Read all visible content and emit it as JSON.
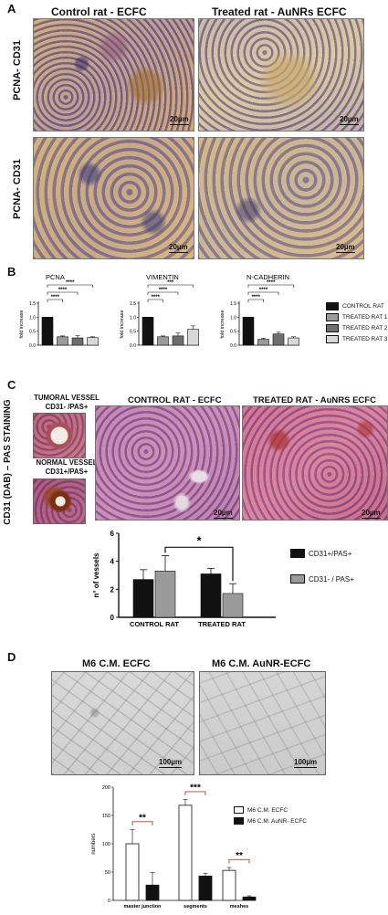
{
  "panel_a": {
    "label": "A",
    "col_titles": [
      "Control rat - ECFC",
      "Treated rat -  AuNRs ECFC"
    ],
    "row_labels": [
      "PCNA- CD31",
      "PCNA- CD31"
    ],
    "scale_bars": [
      "20µm",
      "20µm",
      "20µm",
      "20µm"
    ]
  },
  "panel_b": {
    "label": "B",
    "legend": [
      "CONTROL RAT",
      "TREATED RAT 1",
      "TREATED RAT 2",
      "TREATED RAT 3"
    ],
    "colors": [
      "#111111",
      "#9a9a9a",
      "#6e6e6e",
      "#d8d8d8"
    ]
  },
  "panel_c": {
    "label": "C",
    "side_title": "CD31 (DAB) – PAS  STAINING",
    "tumoral_vessel": [
      "TUMORAL VESSEL",
      "CD31- /PAS+"
    ],
    "normal_vessel": [
      "NORMAL VESSEL",
      "CD31+/PAS+"
    ],
    "col_titles": [
      "CONTROL RAT - ECFC",
      "TREATED RAT -  AuNRS ECFC"
    ],
    "scale_bars": [
      "20µm",
      "20µm"
    ],
    "legend": [
      "CD31+/PAS+",
      "CD31- / PAS+"
    ],
    "colors": [
      "#111111",
      "#9a9a9a"
    ]
  },
  "panel_d": {
    "label": "D",
    "col_titles": [
      "M6  C.M. ECFC",
      "M6  C.M. AuNR-ECFC"
    ],
    "scale_bars": [
      "100µm",
      "100µm"
    ],
    "legend": [
      "M6 C.M. ECFC",
      "M6 C.M. AuNR- ECFC"
    ],
    "colors": [
      "#ffffff",
      "#111111"
    ]
  },
  "chart_data": [
    {
      "type": "bar",
      "title": "PCNA",
      "ylabel": "fold increase",
      "ylim": [
        0,
        1.5
      ],
      "yticks": [
        "0.0",
        "0.5",
        "1.0",
        "1.5"
      ],
      "categories": [
        "CONTROL RAT",
        "TREATED RAT 1",
        "TREATED RAT 2",
        "TREATED RAT 3"
      ],
      "values": [
        1.0,
        0.3,
        0.26,
        0.27
      ],
      "errors": [
        0,
        0.03,
        0.08,
        0.03
      ],
      "significance": [
        "****",
        "****",
        "****"
      ]
    },
    {
      "type": "bar",
      "title": "VIMENTIN",
      "ylabel": "fold increase",
      "ylim": [
        0,
        1.5
      ],
      "yticks": [
        "0.0",
        "0.5",
        "1.0",
        "1.5"
      ],
      "categories": [
        "CONTROL RAT",
        "TREATED RAT 1",
        "TREATED RAT 2",
        "TREATED RAT 3"
      ],
      "values": [
        1.0,
        0.3,
        0.33,
        0.57
      ],
      "errors": [
        0,
        0.03,
        0.1,
        0.12
      ],
      "significance": [
        "****",
        "****",
        "***"
      ]
    },
    {
      "type": "bar",
      "title": "N-CADHERIN",
      "ylabel": "fold increase",
      "ylim": [
        0,
        1.5
      ],
      "yticks": [
        "0.0",
        "0.5",
        "1.0",
        "1.5"
      ],
      "categories": [
        "CONTROL RAT",
        "TREATED RAT 1",
        "TREATED RAT 2",
        "TREATED RAT 3"
      ],
      "values": [
        1.0,
        0.21,
        0.4,
        0.26
      ],
      "errors": [
        0,
        0.04,
        0.06,
        0.04
      ],
      "significance": [
        "****",
        "****",
        "****"
      ]
    },
    {
      "type": "bar",
      "ylabel": "n° of vessels",
      "ylim": [
        0,
        6
      ],
      "yticks": [
        "0",
        "2",
        "4",
        "6"
      ],
      "categories": [
        "CONTROL RAT",
        "TREATED RAT"
      ],
      "series": [
        {
          "name": "CD31+/PAS+",
          "values": [
            2.7,
            3.1
          ],
          "errors": [
            0.7,
            0.4
          ]
        },
        {
          "name": "CD31- / PAS+",
          "values": [
            3.3,
            1.7
          ],
          "errors": [
            1.1,
            0.7
          ]
        }
      ],
      "significance": [
        "*"
      ]
    },
    {
      "type": "bar",
      "ylabel": "numbers",
      "ylim": [
        0,
        200
      ],
      "yticks": [
        "0",
        "50",
        "100",
        "150",
        "200"
      ],
      "categories": [
        "master junction",
        "segments",
        "meshes"
      ],
      "series": [
        {
          "name": "M6 C.M. ECFC",
          "values": [
            100,
            168,
            53
          ],
          "errors": [
            25,
            10,
            5
          ]
        },
        {
          "name": "M6 C.M. AuNR- ECFC",
          "values": [
            27,
            43,
            6
          ],
          "errors": [
            22,
            5,
            2
          ]
        }
      ],
      "significance": [
        "**",
        "***",
        "**"
      ]
    }
  ]
}
